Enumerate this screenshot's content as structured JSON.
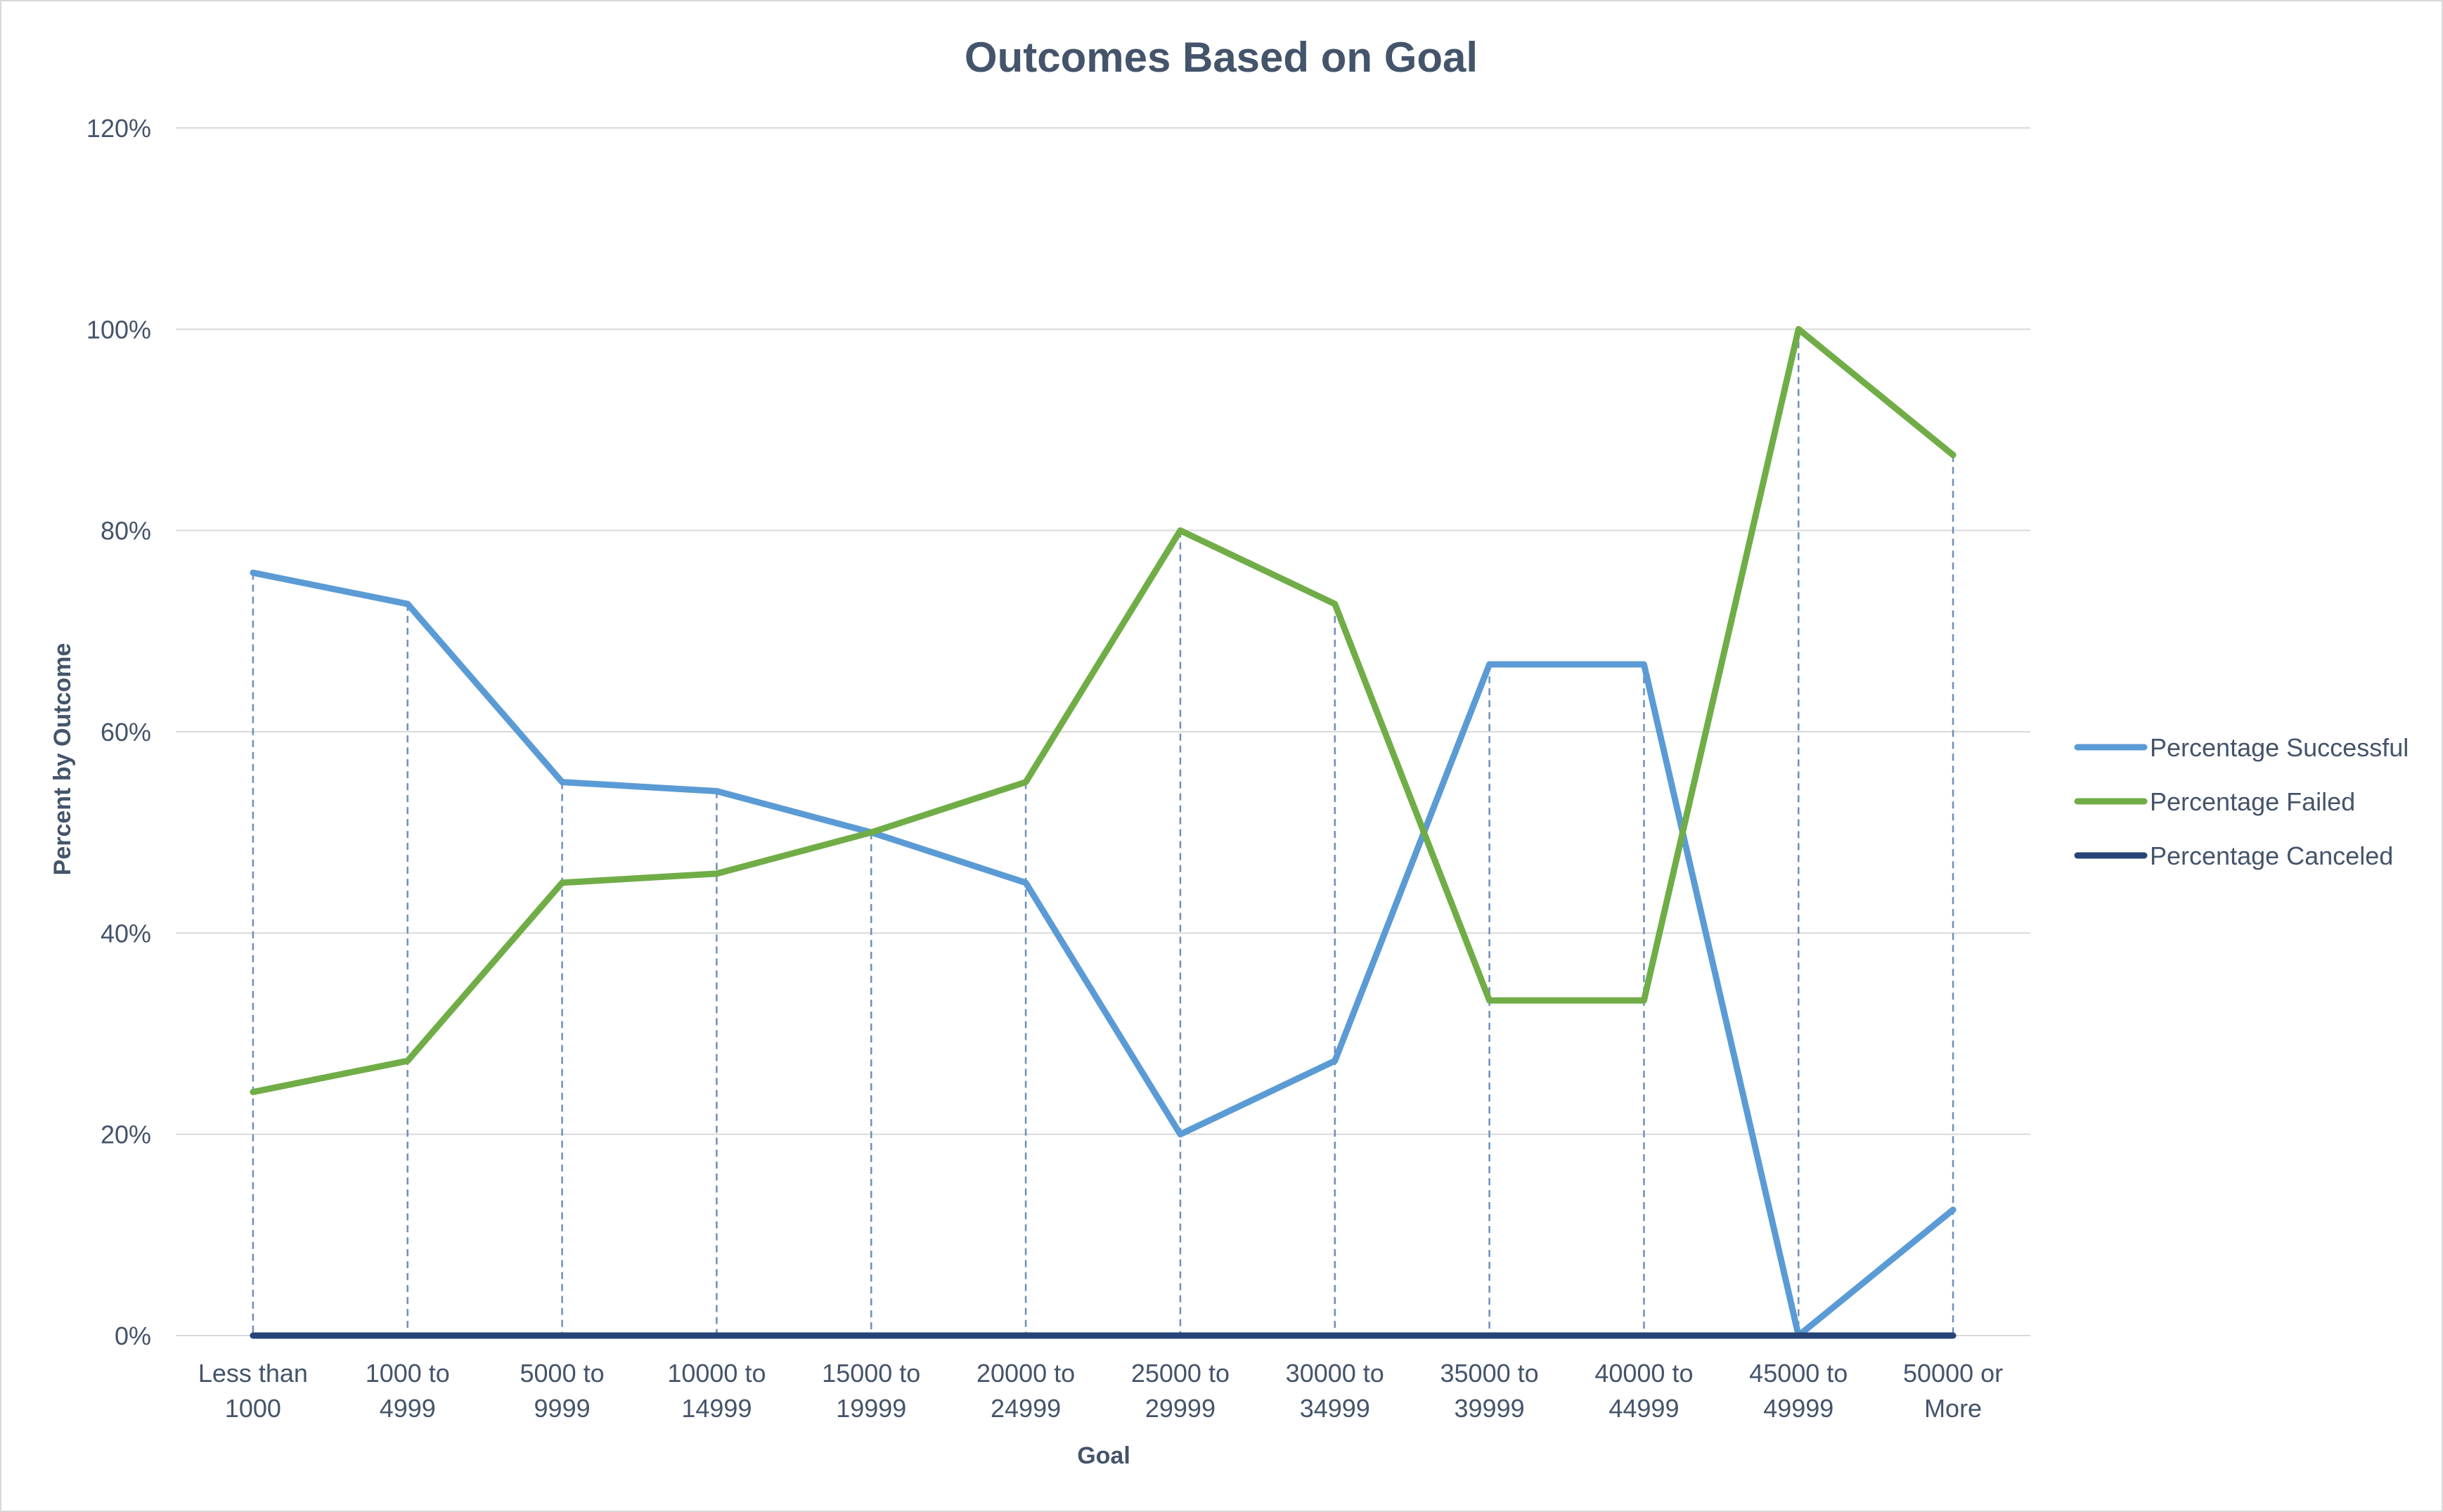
{
  "chart_data": {
    "type": "line",
    "title": "Outcomes Based on Goal",
    "xlabel": "Goal",
    "ylabel": "Percent by Outcome",
    "categories": [
      [
        "Less than",
        "1000"
      ],
      [
        "1000 to",
        "4999"
      ],
      [
        "5000 to",
        "9999"
      ],
      [
        "10000 to",
        "14999"
      ],
      [
        "15000 to",
        "19999"
      ],
      [
        "20000 to",
        "24999"
      ],
      [
        "25000 to",
        "29999"
      ],
      [
        "30000 to",
        "34999"
      ],
      [
        "35000 to",
        "39999"
      ],
      [
        "40000 to",
        "44999"
      ],
      [
        "45000 to",
        "49999"
      ],
      [
        "50000 or",
        "More"
      ]
    ],
    "ylim": [
      0,
      1.2
    ],
    "yticks": [
      0,
      0.2,
      0.4,
      0.6,
      0.8,
      1.0,
      1.2
    ],
    "ytick_labels": [
      "0%",
      "20%",
      "40%",
      "60%",
      "80%",
      "100%",
      "120%"
    ],
    "grid": true,
    "drop_lines": true,
    "legend_position": "right",
    "series": [
      {
        "name": "Percentage Successful",
        "color": "#5b9bd5",
        "values": [
          0.758,
          0.727,
          0.55,
          0.541,
          0.5,
          0.45,
          0.2,
          0.273,
          0.667,
          0.667,
          0.0,
          0.125
        ]
      },
      {
        "name": "Percentage Failed",
        "color": "#70ad47",
        "values": [
          0.242,
          0.273,
          0.45,
          0.459,
          0.5,
          0.55,
          0.8,
          0.727,
          0.333,
          0.333,
          1.0,
          0.875
        ]
      },
      {
        "name": "Percentage Canceled",
        "color": "#264478",
        "values": [
          0,
          0,
          0,
          0,
          0,
          0,
          0,
          0,
          0,
          0,
          0,
          0
        ]
      }
    ]
  }
}
